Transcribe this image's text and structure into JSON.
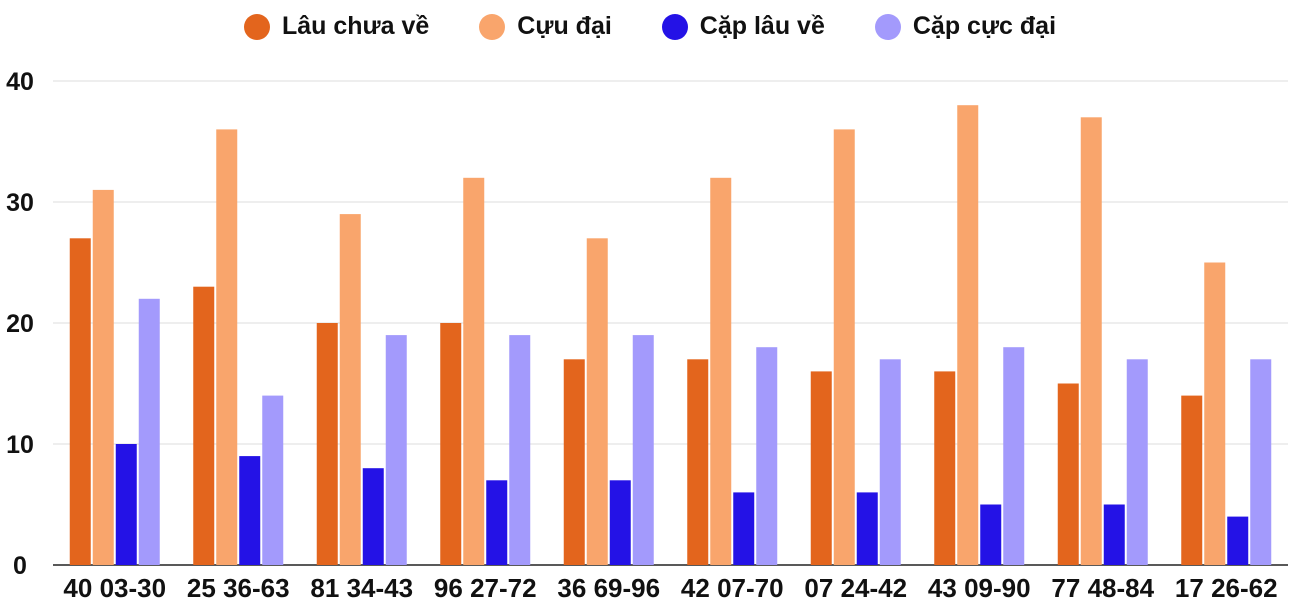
{
  "chart_data": {
    "type": "bar",
    "categories": [
      "40 03-30",
      "25 36-63",
      "81 34-43",
      "96 27-72",
      "36 69-96",
      "42 07-70",
      "07 24-42",
      "43 09-90",
      "77 48-84",
      "17 26-62"
    ],
    "series": [
      {
        "name": "Lâu chưa về",
        "color": "#e3651d",
        "values": [
          27,
          23,
          20,
          20,
          17,
          17,
          16,
          16,
          15,
          14
        ]
      },
      {
        "name": "Cựu đại",
        "color": "#f9a56c",
        "values": [
          31,
          36,
          29,
          32,
          27,
          32,
          36,
          38,
          37,
          25
        ]
      },
      {
        "name": "Cặp lâu về",
        "color": "#2412e6",
        "values": [
          10,
          9,
          8,
          7,
          7,
          6,
          6,
          5,
          5,
          4
        ]
      },
      {
        "name": "Cặp cực đại",
        "color": "#a39afc",
        "values": [
          22,
          14,
          19,
          19,
          19,
          18,
          17,
          18,
          17,
          17
        ]
      }
    ],
    "yticks": [
      "0",
      "10",
      "20",
      "30",
      "40"
    ],
    "ylim": [
      0,
      40
    ],
    "grid": true,
    "legend_position": "top-center",
    "title": "",
    "xlabel": "",
    "ylabel": ""
  }
}
